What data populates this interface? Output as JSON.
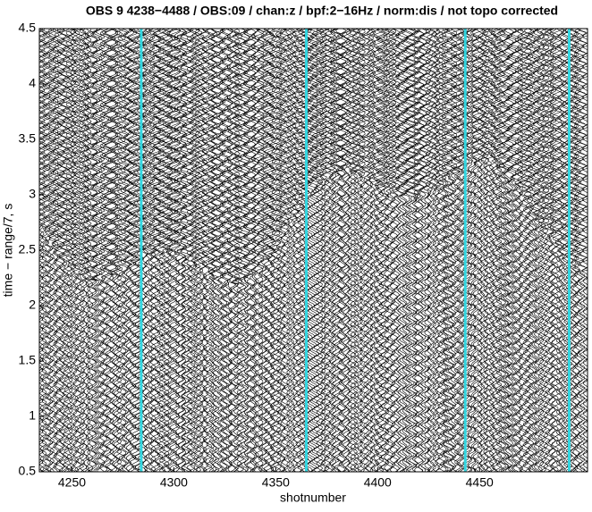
{
  "chart_data": {
    "type": "seismic",
    "title": "OBS 9 4238−4488 / OBS:09 / chan:z / bpf:2−16Hz / norm:dis / not topo corrected",
    "xlabel": "shotnumber",
    "ylabel": "time − range/7, s",
    "xlim": [
      4234,
      4503
    ],
    "xticks": [
      4250,
      4300,
      4350,
      4400,
      4450
    ],
    "ylim": [
      0.5,
      4.5
    ],
    "yticks": [
      0.5,
      1,
      1.5,
      2,
      2.5,
      3,
      3.5,
      4,
      4.5
    ],
    "trace_color": "#000000",
    "markers": {
      "color": "#33d6e0",
      "x": [
        4284,
        4365,
        4443,
        4494
      ]
    }
  }
}
